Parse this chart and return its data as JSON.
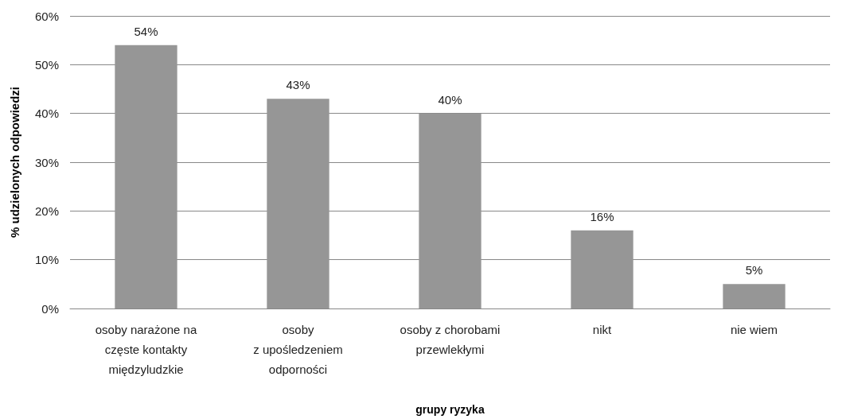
{
  "chart_data": {
    "type": "bar",
    "xlabel": "grupy ryzyka",
    "ylabel": "% udzielonych odpowiedzi",
    "categories": [
      "osoby narażone na\nczęste kontakty\nmiędzyludzkie",
      "osoby\nz upośledzeniem\nodporności",
      "osoby z chorobami\nprzewlekłymi",
      "nikt",
      "nie wiem"
    ],
    "values": [
      54,
      43,
      40,
      16,
      5
    ],
    "value_labels": [
      "54%",
      "43%",
      "40%",
      "16%",
      "5%"
    ],
    "color": "#969696",
    "ylim": [
      0,
      60
    ],
    "yticks": [
      {
        "value": 0,
        "label": "0%"
      },
      {
        "value": 10,
        "label": "10%"
      },
      {
        "value": 20,
        "label": "20%"
      },
      {
        "value": 30,
        "label": "30%"
      },
      {
        "value": 40,
        "label": "40%"
      },
      {
        "value": 50,
        "label": "50%"
      },
      {
        "value": 60,
        "label": "60%"
      }
    ],
    "grid": "y"
  }
}
